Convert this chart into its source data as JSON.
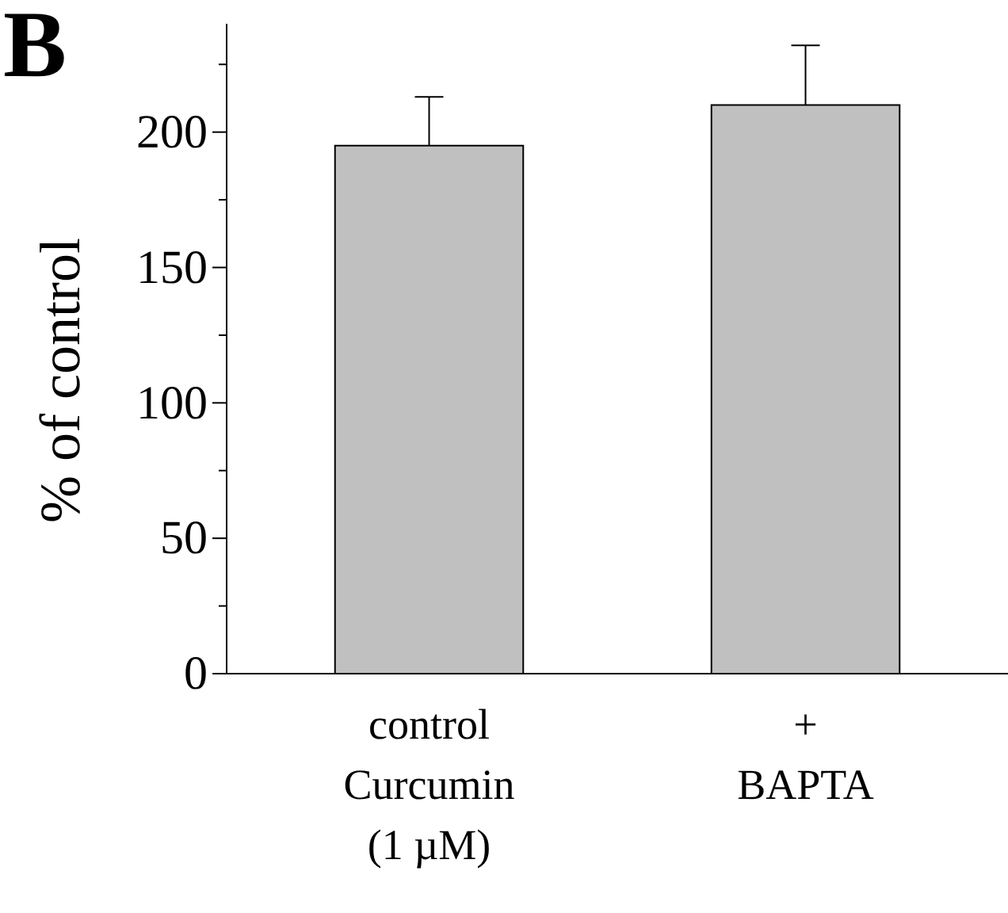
{
  "chart_data": {
    "type": "bar",
    "annotations": [
      "B"
    ],
    "ylabel": "% of control",
    "categories": [
      "control\nCurcumin\n(1 µM)",
      "+\nBAPTA"
    ],
    "values": [
      195,
      210
    ],
    "color": "#c0c0c0",
    "errors": [
      [
        195,
        213
      ],
      [
        210,
        232
      ]
    ],
    "ylim": [
      0,
      240
    ],
    "yticks": [
      0,
      {
        "value": 25,
        "label": null
      },
      50,
      {
        "value": 75,
        "label": null
      },
      100,
      {
        "value": 125,
        "label": null
      },
      150,
      {
        "value": 175,
        "label": null
      },
      200,
      {
        "value": 225,
        "label": null
      }
    ],
    "grid": false
  }
}
